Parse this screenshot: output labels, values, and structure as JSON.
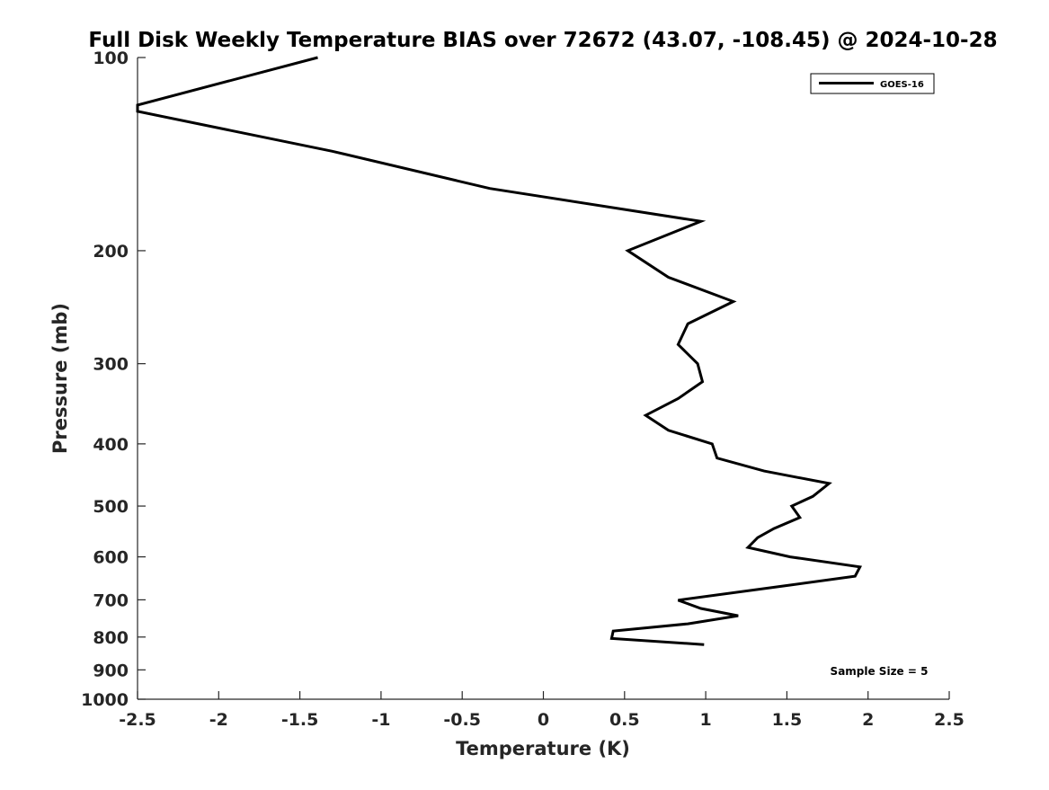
{
  "chart_data": {
    "type": "line",
    "title": "Full Disk Weekly Temperature BIAS over 72672 (43.07, -108.45) @ 2024-10-28",
    "xlabel": "Temperature (K)",
    "ylabel": "Pressure (mb)",
    "xlim": [
      -2.5,
      2.5
    ],
    "ylim": [
      100,
      1000
    ],
    "yscale": "log",
    "y_reversed": true,
    "grid": false,
    "xticks": [
      -2.5,
      -2,
      -1.5,
      -1,
      -0.5,
      0,
      0.5,
      1,
      1.5,
      2,
      2.5
    ],
    "xtick_labels": [
      "-2.5",
      "-2",
      "-1.5",
      "-1",
      "-0.5",
      "0",
      "0.5",
      "1",
      "1.5",
      "2",
      "2.5"
    ],
    "yticks": [
      100,
      200,
      300,
      400,
      500,
      600,
      700,
      800,
      900,
      1000
    ],
    "ytick_labels": [
      "100",
      "200",
      "300",
      "400",
      "500",
      "600",
      "700",
      "800",
      "900",
      "1000"
    ],
    "legend_position": "top-right",
    "annotation": "Sample Size = 5",
    "series": [
      {
        "name": "GOES-16",
        "color": "#000000",
        "x": [
          -1.39,
          -2.5,
          -2.5,
          -1.3,
          -0.33,
          0.97,
          0.52,
          0.77,
          1.17,
          0.89,
          0.83,
          0.95,
          0.98,
          0.83,
          0.63,
          0.77,
          1.04,
          1.07,
          1.36,
          1.76,
          1.66,
          1.53,
          1.58,
          1.42,
          1.32,
          1.26,
          1.52,
          1.95,
          1.92,
          1.52,
          0.83,
          0.97,
          1.2,
          0.89,
          0.43,
          0.42,
          0.99
        ],
        "y": [
          100,
          118.6,
          121.3,
          140,
          160,
          180,
          200,
          220,
          240,
          260,
          280,
          300,
          320,
          340,
          361,
          381,
          400,
          421,
          441,
          461,
          483,
          500,
          521,
          542,
          560,
          580,
          600,
          622,
          643,
          664,
          701,
          722,
          741,
          763,
          783,
          804,
          822
        ]
      }
    ]
  }
}
